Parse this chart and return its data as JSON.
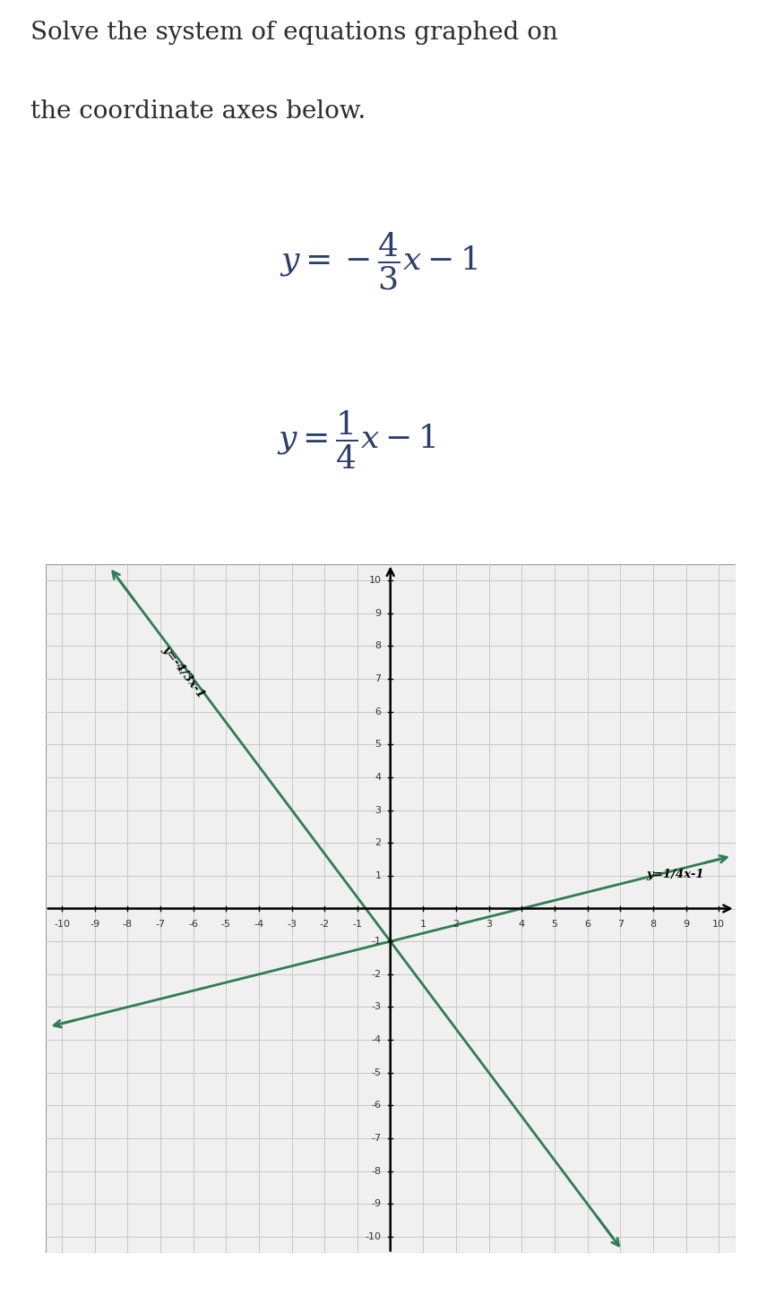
{
  "line1_slope": -1.3333333333,
  "line1_intercept": -1,
  "line2_slope": 0.25,
  "line2_intercept": -1,
  "line_color": "#2e7d52",
  "grid_color": "#c8c8c8",
  "bg_color": "#f0f0f0",
  "xlim": [
    -10,
    10
  ],
  "ylim": [
    -10,
    10
  ],
  "line1_label": "y=-4/3x-1",
  "line2_label": "y=1/4x-1",
  "title_color": "#2c2c2c",
  "eq_color": "#2c3e6b"
}
